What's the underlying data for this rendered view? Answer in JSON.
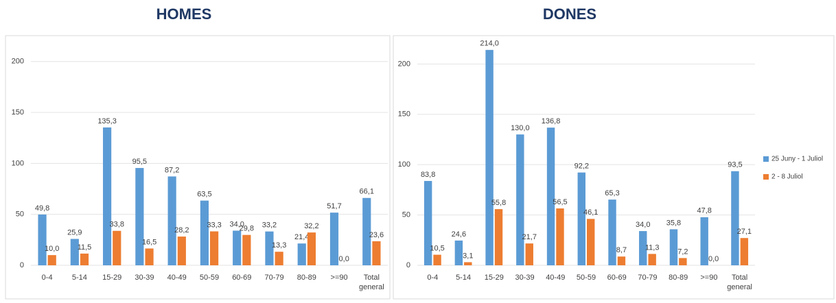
{
  "chart_data": [
    {
      "type": "bar",
      "title": "HOMES",
      "categories": [
        "0-4",
        "5-14",
        "15-29",
        "30-39",
        "40-49",
        "50-59",
        "60-69",
        "70-79",
        "80-89",
        ">=90",
        "Total general"
      ],
      "series": [
        {
          "color": "#5b9bd5",
          "values": [
            49.8,
            25.9,
            135.3,
            95.5,
            87.2,
            63.5,
            34.0,
            33.2,
            21.4,
            51.7,
            66.1
          ],
          "value_labels": [
            "49,8",
            "25,9",
            "135,3",
            "95,5",
            "87,2",
            "63,5",
            "34,0",
            "33,2",
            "21,4",
            "51,7",
            "66,1"
          ]
        },
        {
          "color": "#ed7d31",
          "values": [
            10.0,
            11.5,
            33.8,
            16.5,
            28.2,
            33.3,
            29.8,
            13.3,
            32.2,
            0.0,
            23.6
          ],
          "value_labels": [
            "10,0",
            "11,5",
            "33,8",
            "16,5",
            "28,2",
            "33,3",
            "29,8",
            "13,3",
            "32,2",
            "0,0",
            "23,6"
          ]
        }
      ],
      "ylim": [
        0,
        220
      ],
      "yticks": [
        0,
        50,
        100,
        150,
        200
      ],
      "grid": true
    },
    {
      "type": "bar",
      "title": "DONES",
      "categories": [
        "0-4",
        "5-14",
        "15-29",
        "30-39",
        "40-49",
        "50-59",
        "60-69",
        "70-79",
        "80-89",
        ">=90",
        "Total general"
      ],
      "series": [
        {
          "name": "25 Juny - 1 Juliol",
          "color": "#5b9bd5",
          "values": [
            83.8,
            24.6,
            214.0,
            130.0,
            136.8,
            92.2,
            65.3,
            34.0,
            35.8,
            47.8,
            93.5
          ],
          "value_labels": [
            "83,8",
            "24,6",
            "214,0",
            "130,0",
            "136,8",
            "92,2",
            "65,3",
            "34,0",
            "35,8",
            "47,8",
            "93,5"
          ]
        },
        {
          "name": "2 - 8 Juliol",
          "color": "#ed7d31",
          "values": [
            10.5,
            3.1,
            55.8,
            21.7,
            56.5,
            46.1,
            8.7,
            11.3,
            7.2,
            0.0,
            27.1
          ],
          "value_labels": [
            "10,5",
            "3,1",
            "55,8",
            "21,7",
            "56,5",
            "46,1",
            "8,7",
            "11,3",
            "7,2",
            "0,0",
            "27,1"
          ]
        }
      ],
      "ylim": [
        0,
        220
      ],
      "yticks": [
        0,
        50,
        100,
        150,
        200
      ],
      "grid": true,
      "legend": "right"
    }
  ]
}
